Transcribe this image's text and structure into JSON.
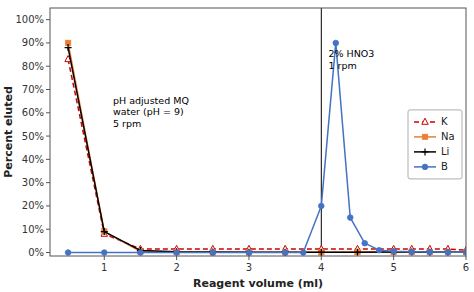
{
  "chart_data": {
    "type": "line",
    "xlabel": "Reagent volume (ml)",
    "ylabel": "Percent eluted",
    "xlim": [
      0.25,
      6.0
    ],
    "ylim": [
      -0.015,
      1.05
    ],
    "xticks": [
      1,
      2,
      3,
      4,
      5,
      6
    ],
    "yticks": [
      {
        "value": 0,
        "label": "0%"
      },
      {
        "value": 0.1,
        "label": "10%"
      },
      {
        "value": 0.2,
        "label": "20%"
      },
      {
        "value": 0.3,
        "label": "30%"
      },
      {
        "value": 0.4,
        "label": "40%"
      },
      {
        "value": 0.5,
        "label": "50%"
      },
      {
        "value": 0.6,
        "label": "60%"
      },
      {
        "value": 0.7,
        "label": "70%"
      },
      {
        "value": 0.8,
        "label": "80%"
      },
      {
        "value": 0.9,
        "label": "90%"
      },
      {
        "value": 1.0,
        "label": "100%"
      }
    ],
    "grid": false,
    "legend": "right",
    "vline_x": 4.0,
    "annotations": [
      {
        "text": "pH adjusted MQ\nwater (pH = 9)\n5 rpm",
        "x": 1.12,
        "y": 0.68
      },
      {
        "text": "2% HNO3\n1 rpm",
        "x": 4.1,
        "y": 0.88
      }
    ],
    "series": [
      {
        "name": "K",
        "color": "#CC0000",
        "marker": "triangle",
        "line_style": "dashed",
        "x": [
          0.5,
          1.0,
          1.5,
          2.0,
          2.5,
          3.0,
          3.5,
          4.0,
          4.5,
          5.0,
          5.25,
          5.5,
          5.75,
          6.0
        ],
        "values": [
          0.83,
          0.08,
          0.015,
          0.015,
          0.015,
          0.015,
          0.015,
          0.015,
          0.015,
          0.015,
          0.015,
          0.015,
          0.015,
          0.01
        ]
      },
      {
        "name": "Na",
        "color": "#ED7D31",
        "marker": "square",
        "line_style": "solid",
        "x": [
          0.5,
          1.0,
          1.5,
          2.0,
          2.5,
          3.0,
          3.5,
          4.0,
          4.5,
          5.0,
          5.25,
          5.5,
          5.75,
          6.0
        ],
        "values": [
          0.9,
          0.09,
          0.005,
          0.002,
          0.001,
          0.001,
          0.001,
          0.001,
          0.002,
          0.002,
          0.002,
          0.002,
          0.002,
          0.002
        ]
      },
      {
        "name": "Li",
        "color": "#000000",
        "marker": "plus",
        "line_style": "solid",
        "x": [
          0.5,
          1.0,
          1.5,
          2.0,
          2.5,
          3.0,
          3.5,
          4.0,
          4.5,
          5.0,
          5.25,
          5.5,
          5.75,
          6.0
        ],
        "values": [
          0.88,
          0.09,
          0.009,
          0.003,
          0.002,
          0.001,
          0.001,
          0.001,
          0.001,
          0.002,
          0.002,
          0.001,
          0.001,
          0.001
        ]
      },
      {
        "name": "B",
        "color": "#4472C4",
        "marker": "circle",
        "line_style": "solid",
        "x": [
          0.5,
          1.0,
          1.5,
          2.0,
          2.5,
          3.0,
          3.5,
          3.75,
          4.0,
          4.2,
          4.4,
          4.6,
          4.8,
          5.0,
          5.25,
          5.5,
          5.75,
          6.0
        ],
        "values": [
          0.0,
          0.0,
          0.0,
          0.0,
          0.0,
          0.0,
          0.0,
          0.0,
          0.2,
          0.9,
          0.15,
          0.04,
          0.01,
          0.005,
          0.003,
          0.002,
          0.001,
          0.001
        ]
      }
    ]
  }
}
